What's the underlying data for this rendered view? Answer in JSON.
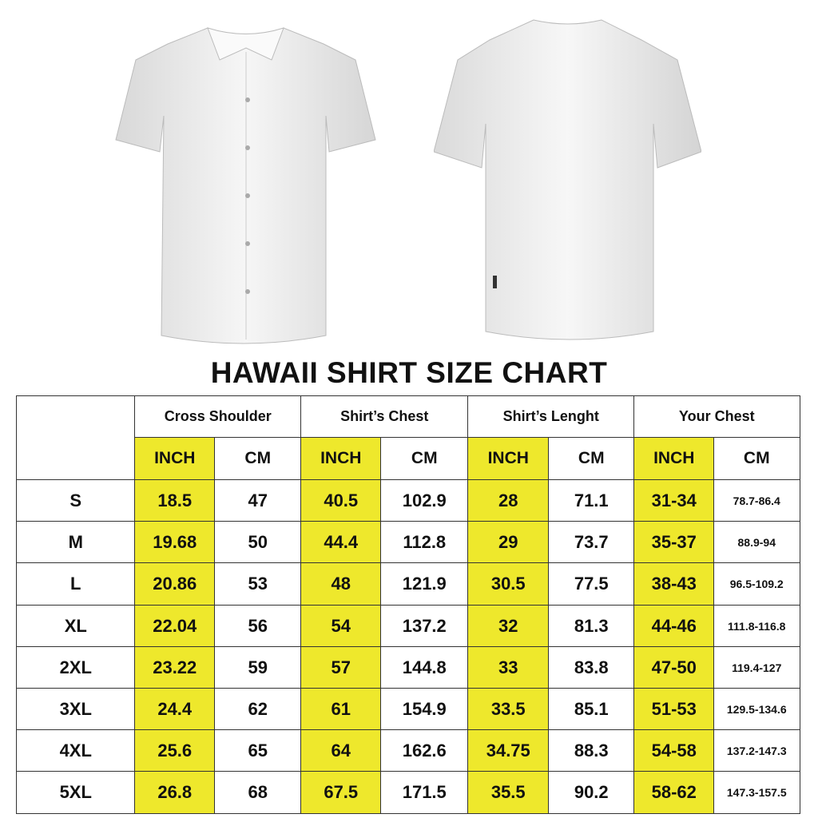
{
  "title": "HAWAII SHIRT SIZE CHART",
  "colors": {
    "highlight": "#eee82c",
    "border": "#333333"
  },
  "groups": [
    "Cross Shoulder",
    "Shirt’s Chest",
    "Shirt’s Lenght",
    "Your Chest"
  ],
  "units": [
    "INCH",
    "CM",
    "INCH",
    "CM",
    "INCH",
    "CM",
    "INCH",
    "CM"
  ],
  "rows": [
    {
      "size": "S",
      "values": [
        "18.5",
        "47",
        "40.5",
        "102.9",
        "28",
        "71.1",
        "31-34",
        "78.7-86.4"
      ]
    },
    {
      "size": "M",
      "values": [
        "19.68",
        "50",
        "44.4",
        "112.8",
        "29",
        "73.7",
        "35-37",
        "88.9-94"
      ]
    },
    {
      "size": "L",
      "values": [
        "20.86",
        "53",
        "48",
        "121.9",
        "30.5",
        "77.5",
        "38-43",
        "96.5-109.2"
      ]
    },
    {
      "size": "XL",
      "values": [
        "22.04",
        "56",
        "54",
        "137.2",
        "32",
        "81.3",
        "44-46",
        "111.8-116.8"
      ]
    },
    {
      "size": "2XL",
      "values": [
        "23.22",
        "59",
        "57",
        "144.8",
        "33",
        "83.8",
        "47-50",
        "119.4-127"
      ]
    },
    {
      "size": "3XL",
      "values": [
        "24.4",
        "62",
        "61",
        "154.9",
        "33.5",
        "85.1",
        "51-53",
        "129.5-134.6"
      ]
    },
    {
      "size": "4XL",
      "values": [
        "25.6",
        "65",
        "64",
        "162.6",
        "34.75",
        "88.3",
        "54-58",
        "137.2-147.3"
      ]
    },
    {
      "size": "5XL",
      "values": [
        "26.8",
        "68",
        "67.5",
        "171.5",
        "35.5",
        "90.2",
        "58-62",
        "147.3-157.5"
      ]
    }
  ]
}
